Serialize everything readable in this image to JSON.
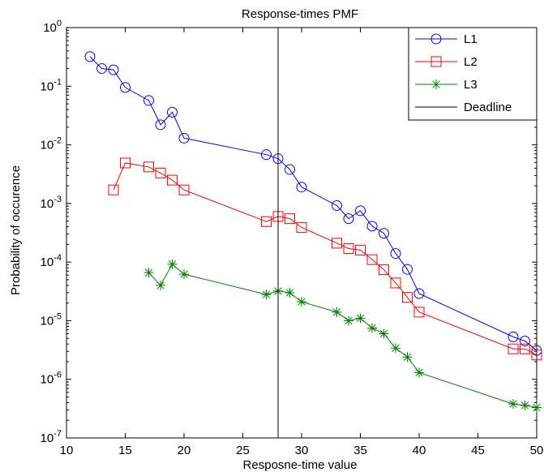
{
  "chart_data": {
    "type": "line",
    "title": "Response-times PMF",
    "xlabel": "Resposne-time value",
    "ylabel": "Probability of occurence",
    "xlim": [
      10,
      50
    ],
    "ylim": [
      1e-07,
      1
    ],
    "yscale": "log",
    "grid": false,
    "legend_position": "top-right",
    "x_ticks": [
      10,
      15,
      20,
      25,
      30,
      35,
      40,
      45,
      50
    ],
    "x_tick_labels": [
      "10",
      "15",
      "20",
      "25",
      "30",
      "35",
      "40",
      "45",
      "50"
    ],
    "y_ticks": [
      {
        "value": 1,
        "base": "10",
        "exp": "0"
      },
      {
        "value": 0.1,
        "base": "10",
        "exp": "-1"
      },
      {
        "value": 0.01,
        "base": "10",
        "exp": "-2"
      },
      {
        "value": 0.001,
        "base": "10",
        "exp": "-3"
      },
      {
        "value": 0.0001,
        "base": "10",
        "exp": "-4"
      },
      {
        "value": 1e-05,
        "base": "10",
        "exp": "-5"
      },
      {
        "value": 1e-06,
        "base": "10",
        "exp": "-6"
      },
      {
        "value": 1e-07,
        "base": "10",
        "exp": "-7"
      }
    ],
    "series": [
      {
        "name": "L1",
        "color": "#0000ff",
        "marker": "circle",
        "x": [
          12,
          13,
          14,
          15,
          17,
          18,
          19,
          20,
          27,
          28,
          29,
          30,
          33,
          34,
          35,
          36,
          37,
          38,
          39,
          40,
          48,
          49,
          50
        ],
        "y": [
          0.32,
          0.2,
          0.19,
          0.095,
          0.057,
          0.022,
          0.036,
          0.013,
          0.0068,
          0.0058,
          0.0038,
          0.0019,
          0.00092,
          0.00055,
          0.00075,
          0.00041,
          0.00031,
          0.00014,
          7.5e-05,
          2.9e-05,
          5.3e-06,
          4.5e-06,
          3.1e-06
        ]
      },
      {
        "name": "L2",
        "color": "#ff0000",
        "marker": "square",
        "x": [
          14,
          15,
          17,
          18,
          19,
          20,
          27,
          28,
          29,
          30,
          33,
          34,
          35,
          36,
          37,
          38,
          39,
          40,
          48,
          49,
          50
        ],
        "y": [
          0.0017,
          0.0049,
          0.0042,
          0.0033,
          0.0025,
          0.0017,
          0.00049,
          0.0006,
          0.00055,
          0.00039,
          0.00021,
          0.00017,
          0.00016,
          0.00011,
          7.4e-05,
          4.4e-05,
          2.5e-05,
          1.4e-05,
          3.3e-06,
          3.3e-06,
          2.6e-06
        ]
      },
      {
        "name": "L3",
        "color": "#008000",
        "marker": "star",
        "x": [
          17,
          18,
          19,
          20,
          27,
          28,
          29,
          30,
          33,
          34,
          35,
          36,
          37,
          38,
          39,
          40,
          48,
          49,
          50
        ],
        "y": [
          6.6e-05,
          4e-05,
          9.2e-05,
          6.2e-05,
          2.8e-05,
          3.2e-05,
          3e-05,
          2.1e-05,
          1.4e-05,
          1e-05,
          1.1e-05,
          7.5e-06,
          6e-06,
          3.4e-06,
          2.4e-06,
          1.3e-06,
          3.8e-07,
          3.6e-07,
          3.3e-07
        ]
      },
      {
        "name": "Deadline",
        "color": "#000000",
        "marker": "none",
        "x": [
          28,
          28
        ],
        "y": [
          1e-07,
          1
        ]
      }
    ]
  }
}
